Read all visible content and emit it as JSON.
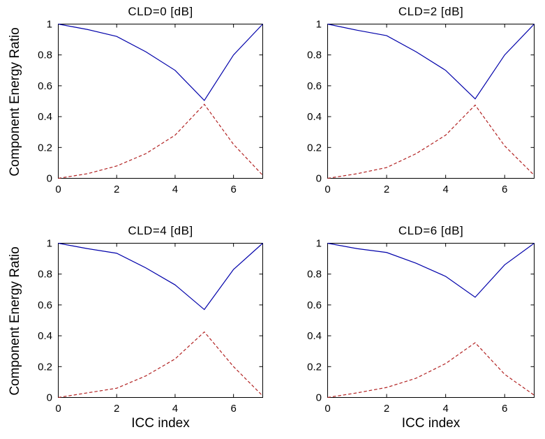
{
  "figure": {
    "background": "#ffffff",
    "axis_color": "#000000",
    "ylabel_left_column": "Component Energy Ratio",
    "xlabel_bottom_row": "ICC index"
  },
  "chart_data": [
    {
      "type": "line",
      "title": "CLD=0 [dB]",
      "ylabel": "Component Energy Ratio",
      "xlim": [
        0,
        7
      ],
      "ylim": [
        0,
        1
      ],
      "xticks": [
        0,
        2,
        4,
        6
      ],
      "yticks": [
        0,
        0.2,
        0.4,
        0.6,
        0.8,
        1
      ],
      "grid": false,
      "legend": "none",
      "x": [
        0,
        1,
        2,
        3,
        4,
        5,
        6,
        7
      ],
      "series": [
        {
          "name": "solid-blue-line",
          "style": "solid",
          "color": "#0000aa",
          "values": [
            1.0,
            0.965,
            0.92,
            0.82,
            0.7,
            0.505,
            0.8,
            1.0
          ]
        },
        {
          "name": "dashed-red-line",
          "style": "dashed",
          "color": "#b22222",
          "values": [
            0.0,
            0.03,
            0.08,
            0.16,
            0.28,
            0.48,
            0.22,
            0.02
          ]
        }
      ]
    },
    {
      "type": "line",
      "title": "CLD=2 [dB]",
      "xlim": [
        0,
        7
      ],
      "ylim": [
        0,
        1
      ],
      "xticks": [
        0,
        2,
        4,
        6
      ],
      "yticks": [
        0,
        0.2,
        0.4,
        0.6,
        0.8,
        1
      ],
      "grid": false,
      "legend": "none",
      "x": [
        0,
        1,
        2,
        3,
        4,
        5,
        6,
        7
      ],
      "series": [
        {
          "name": "solid-blue-line",
          "style": "solid",
          "color": "#0000aa",
          "values": [
            1.0,
            0.96,
            0.925,
            0.82,
            0.7,
            0.515,
            0.8,
            1.0
          ]
        },
        {
          "name": "dashed-red-line",
          "style": "dashed",
          "color": "#b22222",
          "values": [
            0.0,
            0.03,
            0.07,
            0.16,
            0.28,
            0.475,
            0.21,
            0.02
          ]
        }
      ]
    },
    {
      "type": "line",
      "title": "CLD=4 [dB]",
      "ylabel": "Component Energy Ratio",
      "xlabel": "ICC index",
      "xlim": [
        0,
        7
      ],
      "ylim": [
        0,
        1
      ],
      "xticks": [
        0,
        2,
        4,
        6
      ],
      "yticks": [
        0,
        0.2,
        0.4,
        0.6,
        0.8,
        1
      ],
      "grid": false,
      "legend": "none",
      "x": [
        0,
        1,
        2,
        3,
        4,
        5,
        6,
        7
      ],
      "series": [
        {
          "name": "solid-blue-line",
          "style": "solid",
          "color": "#0000aa",
          "values": [
            1.0,
            0.965,
            0.935,
            0.84,
            0.73,
            0.57,
            0.83,
            1.0
          ]
        },
        {
          "name": "dashed-red-line",
          "style": "dashed",
          "color": "#b22222",
          "values": [
            0.0,
            0.03,
            0.06,
            0.14,
            0.25,
            0.425,
            0.2,
            0.01
          ]
        }
      ]
    },
    {
      "type": "line",
      "title": "CLD=6 [dB]",
      "xlabel": "ICC index",
      "xlim": [
        0,
        7
      ],
      "ylim": [
        0,
        1
      ],
      "xticks": [
        0,
        2,
        4,
        6
      ],
      "yticks": [
        0,
        0.2,
        0.4,
        0.6,
        0.8,
        1
      ],
      "grid": false,
      "legend": "none",
      "x": [
        0,
        1,
        2,
        3,
        4,
        5,
        6,
        7
      ],
      "series": [
        {
          "name": "solid-blue-line",
          "style": "solid",
          "color": "#0000aa",
          "values": [
            1.0,
            0.965,
            0.94,
            0.87,
            0.785,
            0.65,
            0.86,
            1.0
          ]
        },
        {
          "name": "dashed-red-line",
          "style": "dashed",
          "color": "#b22222",
          "values": [
            0.0,
            0.03,
            0.065,
            0.125,
            0.22,
            0.355,
            0.15,
            0.015
          ]
        }
      ]
    }
  ]
}
